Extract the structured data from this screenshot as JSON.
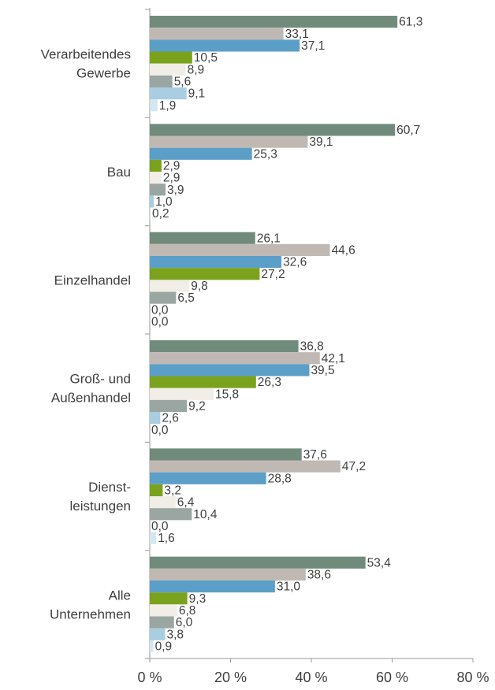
{
  "chart_data": {
    "type": "hbar",
    "categories": [
      "Verarbeitendes\nGewerbe",
      "Bau",
      "Einzelhandel",
      "Groß- und\nAußenhandel",
      "Dienst-\nleistungen",
      "Alle\nUnternehmen"
    ],
    "series": [
      {
        "color": "#708b7c",
        "values": [
          61.3,
          60.7,
          26.1,
          36.8,
          37.6,
          53.4
        ],
        "value_labels": [
          "61,3",
          "60,7",
          "26,1",
          "36,8",
          "37,6",
          "53,4"
        ]
      },
      {
        "color": "#c0b9b3",
        "values": [
          33.1,
          39.1,
          44.6,
          42.1,
          47.2,
          38.6
        ],
        "value_labels": [
          "33,1",
          "39,1",
          "44,6",
          "42,1",
          "47,2",
          "38,6"
        ]
      },
      {
        "color": "#5b9fc9",
        "values": [
          37.1,
          25.3,
          32.6,
          39.5,
          28.8,
          31.0
        ],
        "value_labels": [
          "37,1",
          "25,3",
          "32,6",
          "39,5",
          "28,8",
          "31,0"
        ]
      },
      {
        "color": "#7ba21c",
        "values": [
          10.5,
          2.9,
          27.2,
          26.3,
          3.2,
          9.3
        ],
        "value_labels": [
          "10,5",
          "2,9",
          "27,2",
          "26,3",
          "3,2",
          "9,3"
        ]
      },
      {
        "color": "#f1ede7",
        "values": [
          8.9,
          2.9,
          9.8,
          15.8,
          6.4,
          6.8
        ],
        "value_labels": [
          "8,9",
          "2,9",
          "9,8",
          "15,8",
          "6,4",
          "6,8"
        ]
      },
      {
        "color": "#9aa6a1",
        "values": [
          5.6,
          3.9,
          6.5,
          9.2,
          10.4,
          6.0
        ],
        "value_labels": [
          "5,6",
          "3,9",
          "6,5",
          "9,2",
          "10,4",
          "6,0"
        ]
      },
      {
        "color": "#a9cde1",
        "values": [
          9.1,
          1.0,
          0.0,
          2.6,
          0.0,
          3.8
        ],
        "value_labels": [
          "9,1",
          "1,0",
          "0,0",
          "2,6",
          "0,0",
          "3,8"
        ]
      },
      {
        "color": "#d3e6f1",
        "values": [
          1.9,
          0.2,
          0.0,
          0.0,
          1.6,
          0.9
        ],
        "value_labels": [
          "1,9",
          "0,2",
          "0,0",
          "0,0",
          "1,6",
          "0,9"
        ]
      }
    ],
    "xlim": [
      0,
      80
    ],
    "xticks": [
      {
        "value": 0,
        "label": "0 %"
      },
      {
        "value": 20,
        "label": "20 %"
      },
      {
        "value": 40,
        "label": "40 %"
      },
      {
        "value": 60,
        "label": "60 %"
      },
      {
        "value": 80,
        "label": "80 %"
      }
    ]
  }
}
